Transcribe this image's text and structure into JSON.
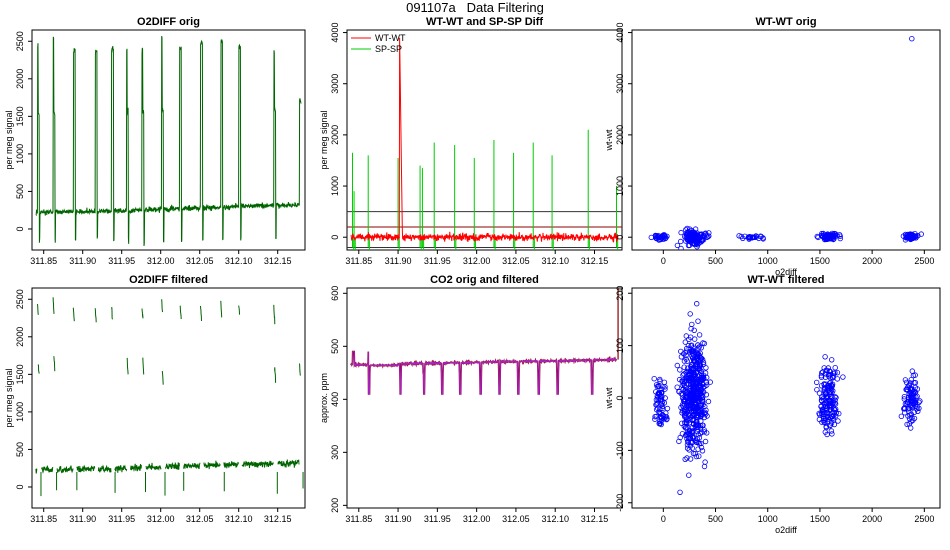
{
  "suptitle": "091107a   Data Filtering",
  "chart_data": [
    {
      "type": "line",
      "title": "O2DIFF orig",
      "xlabel": "",
      "ylabel": "per meg signal",
      "xlim": [
        311.835,
        312.185
      ],
      "ylim": [
        -280,
        2650
      ],
      "x_ticks": [
        311.85,
        311.9,
        311.95,
        312.0,
        312.05,
        312.1,
        312.15
      ],
      "x_tick_labels": [
        "311.85",
        "311.90",
        "311.95",
        "312.00",
        "312.05",
        "312.10",
        "312.15"
      ],
      "y_ticks": [
        0,
        500,
        1000,
        1500,
        2000,
        2500
      ],
      "y_tick_labels": [
        "0",
        "500",
        "1000",
        "1500",
        "2000",
        "2500"
      ],
      "series": [
        {
          "name": "O2DIFF",
          "color": "#006400",
          "baseline": [
            [
              311.84,
              220
            ],
            [
              311.95,
              240
            ],
            [
              312.05,
              280
            ],
            [
              312.1,
              300
            ],
            [
              312.18,
              320
            ]
          ]
        }
      ],
      "spikes": [
        {
          "x": 311.842,
          "peak": 2450,
          "plateau": 1550
        },
        {
          "x": 311.862,
          "peak": 2550,
          "plateau": 1550
        },
        {
          "x": 311.888,
          "peak": 2380
        },
        {
          "x": 311.916,
          "peak": 2350
        },
        {
          "x": 311.937,
          "peak": 2400
        },
        {
          "x": 311.956,
          "peak": 2380,
          "plateau": 1550
        },
        {
          "x": 311.976,
          "peak": 2380,
          "plateau": 1550
        },
        {
          "x": 312.001,
          "peak": 2550,
          "plateau": 1550
        },
        {
          "x": 312.024,
          "peak": 2400
        },
        {
          "x": 312.051,
          "peak": 2480
        },
        {
          "x": 312.077,
          "peak": 2500
        },
        {
          "x": 312.1,
          "peak": 2430
        },
        {
          "x": 312.145,
          "peak": 2400,
          "plateau": 1600
        },
        {
          "x": 312.178,
          "peak": 1700
        }
      ]
    },
    {
      "type": "line",
      "title": "WT-WT and SP-SP Diff",
      "xlabel": "",
      "ylabel": "per meg signal",
      "xlim": [
        311.835,
        312.185
      ],
      "ylim": [
        -250,
        4050
      ],
      "x_ticks": [
        311.85,
        311.9,
        311.95,
        312.0,
        312.05,
        312.1,
        312.15
      ],
      "x_tick_labels": [
        "311.85",
        "311.90",
        "311.95",
        "312.00",
        "312.05",
        "312.10",
        "312.15"
      ],
      "y_ticks": [
        0,
        1000,
        2000,
        3000,
        4000
      ],
      "y_tick_labels": [
        "0",
        "1000",
        "2000",
        "3000",
        "4000"
      ],
      "legend": [
        "WT-WT",
        "SP-SP"
      ],
      "legend_position": "top-left",
      "series": [
        {
          "name": "WT-WT",
          "color": "#ff0000",
          "baseline": 0,
          "peaks": [
            {
              "x": 311.902,
              "y": 3900
            }
          ]
        },
        {
          "name": "SP-SP",
          "color": "#00cc00",
          "peaks": [
            {
              "x": 311.842,
              "y": 1650
            },
            {
              "x": 311.844,
              "y": 900
            },
            {
              "x": 311.862,
              "y": 1600
            },
            {
              "x": 311.9,
              "y": 1550
            },
            {
              "x": 311.928,
              "y": 1400
            },
            {
              "x": 311.931,
              "y": 1350
            },
            {
              "x": 311.946,
              "y": 1850
            },
            {
              "x": 311.972,
              "y": 1800
            },
            {
              "x": 311.997,
              "y": 1550
            },
            {
              "x": 312.022,
              "y": 1900
            },
            {
              "x": 312.047,
              "y": 1650
            },
            {
              "x": 312.072,
              "y": 1850
            },
            {
              "x": 312.096,
              "y": 1600
            },
            {
              "x": 312.142,
              "y": 2100
            },
            {
              "x": 312.178,
              "y": 1000
            }
          ]
        }
      ],
      "hlines": [
        {
          "y": 500,
          "color": "#333333"
        },
        {
          "y": 200,
          "color": "#8b0000"
        },
        {
          "y": -200,
          "color": "#333333"
        }
      ]
    },
    {
      "type": "scatter",
      "title": "WT-WT orig",
      "xlabel": "o2diff",
      "ylabel": "wt-wt",
      "xlim": [
        -300,
        2650
      ],
      "ylim": [
        -250,
        4050
      ],
      "x_ticks": [
        0,
        500,
        1000,
        1500,
        2000,
        2500
      ],
      "x_tick_labels": [
        "0",
        "500",
        "1000",
        "1500",
        "2000",
        "2500"
      ],
      "y_ticks": [
        0,
        1000,
        2000,
        3000,
        4000
      ],
      "y_tick_labels": [
        "0",
        "1000",
        "2000",
        "3000",
        "4000"
      ],
      "color": "#0000ff",
      "clusters": [
        {
          "x_range": [
            -100,
            60
          ],
          "y_range": [
            -60,
            60
          ]
        },
        {
          "x_range": [
            150,
            420
          ],
          "y_range": [
            -180,
            160
          ]
        },
        {
          "x_range": [
            750,
            1000
          ],
          "y_range": [
            -40,
            40
          ]
        },
        {
          "x_range": [
            1480,
            1680
          ],
          "y_range": [
            -60,
            80
          ]
        },
        {
          "x_range": [
            2300,
            2450
          ],
          "y_range": [
            -60,
            80
          ]
        }
      ],
      "outliers": [
        [
          2380,
          3880
        ]
      ]
    },
    {
      "type": "line",
      "title": "O2DIFF filtered",
      "xlabel": "",
      "ylabel": "per meg signal",
      "xlim": [
        311.835,
        312.185
      ],
      "ylim": [
        -280,
        2650
      ],
      "x_ticks": [
        311.85,
        311.9,
        311.95,
        312.0,
        312.05,
        312.1,
        312.15
      ],
      "x_tick_labels": [
        "311.85",
        "311.90",
        "311.95",
        "312.00",
        "312.05",
        "312.10",
        "312.15"
      ],
      "y_ticks": [
        0,
        500,
        1000,
        1500,
        2000,
        2500
      ],
      "y_tick_labels": [
        "0",
        "500",
        "1000",
        "1500",
        "2000",
        "2500"
      ],
      "series": [
        {
          "name": "O2DIFF",
          "color": "#006400",
          "baseline": [
            [
              311.84,
              220
            ],
            [
              311.95,
              250
            ],
            [
              312.05,
              285
            ],
            [
              312.1,
              300
            ],
            [
              312.18,
              320
            ]
          ]
        }
      ],
      "segments": [
        {
          "x": 311.842,
          "y": 2450
        },
        {
          "x": 311.843,
          "y": 1650
        },
        {
          "x": 311.862,
          "y": 2500
        },
        {
          "x": 311.863,
          "y": 1750
        },
        {
          "x": 311.888,
          "y": 2380
        },
        {
          "x": 311.916,
          "y": 2380
        },
        {
          "x": 311.937,
          "y": 2400
        },
        {
          "x": 311.957,
          "y": 1700
        },
        {
          "x": 311.976,
          "y": 2380
        },
        {
          "x": 311.977,
          "y": 1700
        },
        {
          "x": 312.001,
          "y": 2500
        },
        {
          "x": 312.002,
          "y": 1550
        },
        {
          "x": 312.025,
          "y": 2400
        },
        {
          "x": 312.051,
          "y": 2420
        },
        {
          "x": 312.077,
          "y": 2450
        },
        {
          "x": 312.1,
          "y": 2430
        },
        {
          "x": 312.145,
          "y": 2380
        },
        {
          "x": 312.146,
          "y": 1600
        },
        {
          "x": 312.178,
          "y": 1650
        }
      ]
    },
    {
      "type": "line",
      "title": "CO2 orig and filtered",
      "xlabel": "",
      "ylabel": "approx. ppm",
      "xlim": [
        311.835,
        312.185
      ],
      "ylim": [
        195,
        610
      ],
      "x_ticks": [
        311.85,
        311.9,
        311.95,
        312.0,
        312.05,
        312.1,
        312.15
      ],
      "x_tick_labels": [
        "311.85",
        "311.90",
        "311.95",
        "312.00",
        "312.05",
        "312.10",
        "312.15"
      ],
      "y_ticks": [
        200,
        300,
        400,
        500,
        600
      ],
      "y_tick_labels": [
        "200",
        "300",
        "400",
        "500",
        "600"
      ],
      "series": [
        {
          "name": "CO2 orig",
          "color": "#8b0000",
          "end_spike": [
            312.18,
            610
          ]
        },
        {
          "name": "CO2 filtered",
          "color": "#aa22cc"
        }
      ],
      "levels": {
        "baseline_start": 465,
        "baseline_end": 475,
        "dip": 410
      }
    },
    {
      "type": "scatter",
      "title": "WT-WT filtered",
      "xlabel": "o2diff",
      "ylabel": "wt-wt",
      "xlim": [
        -300,
        2650
      ],
      "ylim": [
        -210,
        210
      ],
      "x_ticks": [
        0,
        500,
        1000,
        1500,
        2000,
        2500
      ],
      "x_tick_labels": [
        "0",
        "500",
        "1000",
        "1500",
        "2000",
        "2500"
      ],
      "y_ticks": [
        -200,
        -100,
        0,
        100,
        200
      ],
      "y_tick_labels": [
        "-200",
        "-100",
        "0",
        "100",
        "200"
      ],
      "color": "#0000ff",
      "clusters": [
        {
          "x_range": [
            -100,
            50
          ],
          "y_range": [
            -65,
            45
          ]
        },
        {
          "x_range": [
            160,
            420
          ],
          "y_range": [
            -120,
            140
          ]
        },
        {
          "x_range": [
            1480,
            1670
          ],
          "y_range": [
            -85,
            70
          ]
        },
        {
          "x_range": [
            2300,
            2450
          ],
          "y_range": [
            -60,
            60
          ]
        }
      ],
      "outliers": [
        [
          320,
          180
        ],
        [
          160,
          -180
        ],
        [
          2280,
          -35
        ],
        [
          1720,
          40
        ]
      ]
    }
  ]
}
